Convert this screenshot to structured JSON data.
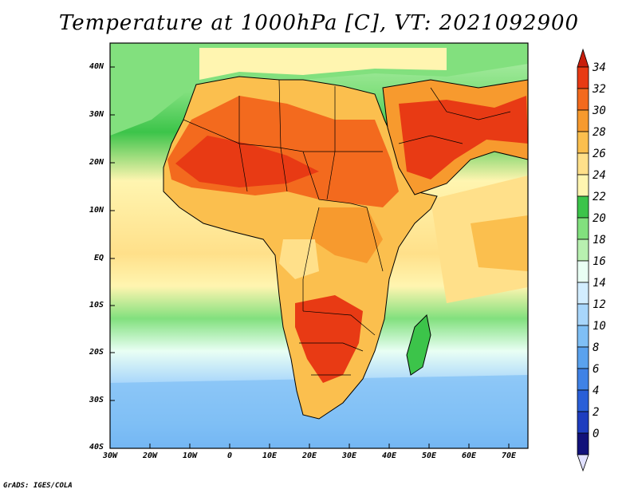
{
  "title": "Temperature at 1000hPa [C], VT: 2021092900",
  "credit": "GrADS: IGES/COLA",
  "axes": {
    "lat_labels": [
      "40N",
      "30N",
      "20N",
      "10N",
      "EQ",
      "10S",
      "20S",
      "30S",
      "40S"
    ],
    "lon_labels": [
      "30W",
      "20W",
      "10W",
      "0",
      "10E",
      "20E",
      "30E",
      "40E",
      "50E",
      "60E",
      "70E"
    ]
  },
  "colorbar": {
    "labels": [
      "0",
      "2",
      "4",
      "6",
      "8",
      "10",
      "12",
      "14",
      "16",
      "18",
      "20",
      "22",
      "24",
      "26",
      "28",
      "30",
      "32",
      "34"
    ],
    "colors": [
      "#11117a",
      "#1e3dbf",
      "#2a5fd8",
      "#3f82e6",
      "#5aa2ee",
      "#7fbff5",
      "#a8d6fb",
      "#d2edff",
      "#e9fff4",
      "#b8f0b0",
      "#82e07e",
      "#3cc44a",
      "#fff5b0",
      "#ffe08a",
      "#fbbf4e",
      "#f79a2e",
      "#f36a1e",
      "#e83a14",
      "#c81e0c"
    ]
  },
  "colors": {
    "ocean_north": "#82e07e",
    "ocean_tropical": "#fff5b0",
    "ocean_south": "#a8d6fb",
    "land_hot": "#e83a14",
    "boundary": "#000000"
  }
}
